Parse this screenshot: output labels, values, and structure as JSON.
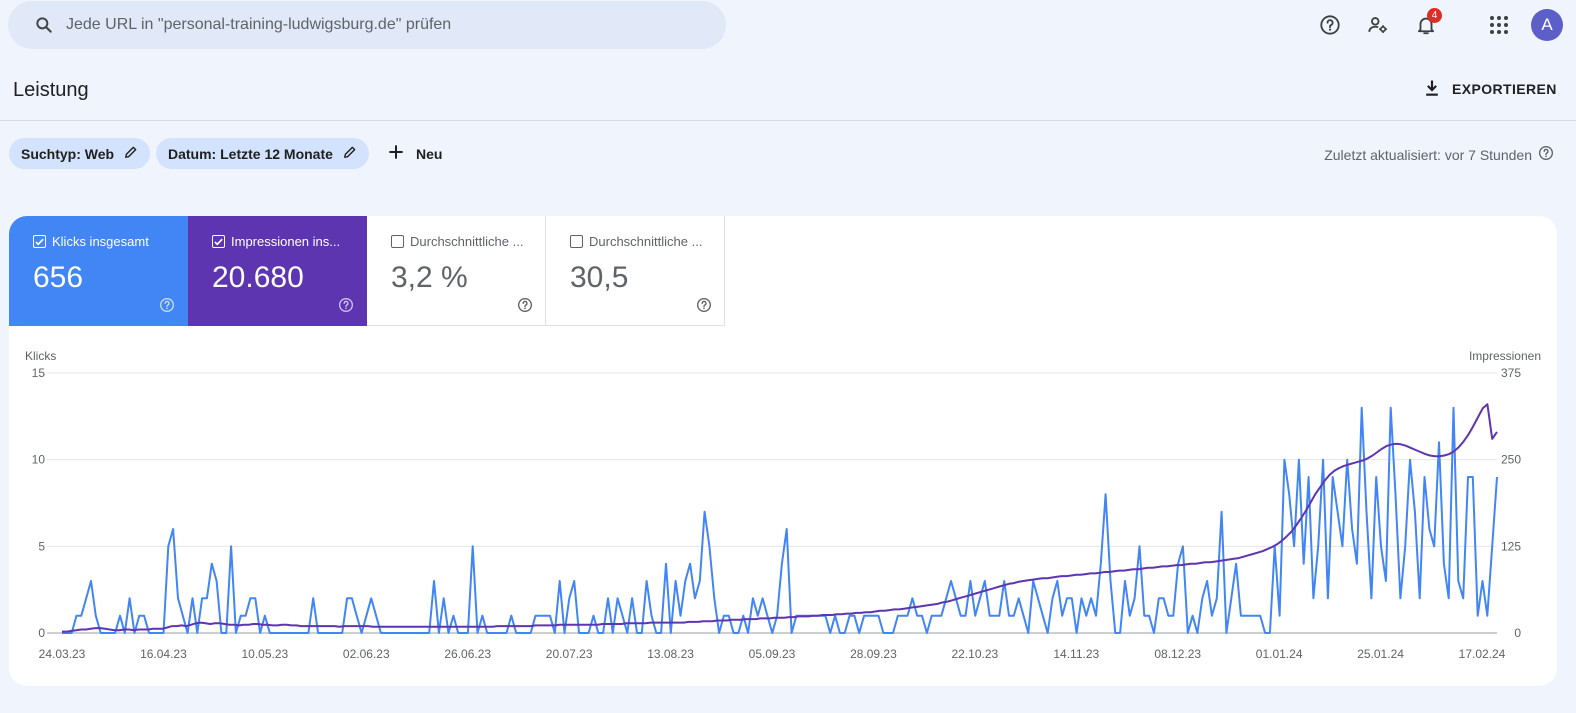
{
  "search": {
    "placeholder": "Jede URL in \"personal-training-ludwigsburg.de\" prüfen"
  },
  "notifications": {
    "count": "4"
  },
  "user": {
    "initial": "A"
  },
  "page": {
    "title": "Leistung",
    "export_label": "EXPORTIEREN"
  },
  "filters": {
    "chips": [
      {
        "label": "Suchtyp: Web"
      },
      {
        "label": "Datum: Letzte 12 Monate"
      }
    ],
    "new_label": "Neu",
    "updated": "Zuletzt aktualisiert: vor 7 Stunden"
  },
  "metrics": [
    {
      "label": "Klicks insgesamt",
      "value": "656",
      "checked": true,
      "color": "#4285f4"
    },
    {
      "label": "Impressionen ins...",
      "value": "20.680",
      "checked": true,
      "color": "#5e35b1"
    },
    {
      "label": "Durchschnittliche ...",
      "value": "3,2 %",
      "checked": false
    },
    {
      "label": "Durchschnittliche ...",
      "value": "30,5",
      "checked": false
    }
  ],
  "colors": {
    "clicks": "#4285f4",
    "impressions": "#5e35b1",
    "accent": "#1a73e8",
    "badge": "#d93025"
  },
  "chart_data": {
    "type": "line",
    "left_axis_label": "Klicks",
    "right_axis_label": "Impressionen",
    "left_ylim": [
      0,
      15
    ],
    "right_ylim": [
      0,
      375
    ],
    "left_ticks": [
      "0",
      "5",
      "10",
      "15"
    ],
    "right_ticks": [
      "0",
      "125",
      "250",
      "375"
    ],
    "x_ticks": [
      "24.03.23",
      "16.04.23",
      "10.05.23",
      "02.06.23",
      "26.06.23",
      "20.07.23",
      "13.08.23",
      "05.09.23",
      "28.09.23",
      "22.10.23",
      "14.11.23",
      "08.12.23",
      "01.01.24",
      "25.01.24",
      "17.02.24"
    ],
    "grid": true,
    "series": [
      {
        "name": "Klicks",
        "axis": "left",
        "values": [
          0,
          0,
          0,
          1,
          1,
          2,
          3,
          1,
          0,
          0,
          0,
          0,
          1,
          0,
          2,
          0,
          1,
          1,
          0,
          0,
          0,
          0,
          5,
          6,
          2,
          1,
          0,
          2,
          0,
          2,
          2,
          4,
          3,
          0,
          0,
          5,
          0,
          1,
          1,
          2,
          2,
          0,
          1,
          0,
          0,
          0,
          0,
          0,
          0,
          0,
          0,
          0,
          2,
          0,
          0,
          0,
          0,
          0,
          0,
          2,
          2,
          1,
          0,
          1,
          2,
          1,
          0,
          0,
          0,
          0,
          0,
          0,
          0,
          0,
          0,
          0,
          0,
          3,
          0,
          2,
          0,
          1,
          0,
          0,
          0,
          5,
          0,
          1,
          0,
          0,
          0,
          0,
          0,
          1,
          0,
          0,
          0,
          0,
          1,
          1,
          1,
          1,
          0,
          3,
          0,
          2,
          3,
          0,
          0,
          0,
          1,
          0,
          0,
          2,
          0,
          2,
          1,
          0,
          2,
          0,
          0,
          3,
          1,
          0,
          0,
          4,
          0,
          3,
          1,
          3,
          4,
          2,
          3,
          7,
          5,
          2,
          0,
          1,
          1,
          0,
          0,
          1,
          0,
          2,
          1,
          2,
          1,
          0,
          1,
          4,
          6,
          0,
          1,
          1,
          1,
          1,
          1,
          1,
          1,
          0,
          1,
          0,
          0,
          1,
          1,
          0,
          1,
          1,
          1,
          1,
          0,
          0,
          0,
          1,
          1,
          1,
          2,
          1,
          1,
          0,
          1,
          1,
          1,
          2,
          3,
          2,
          1,
          1,
          3,
          1,
          2,
          3,
          1,
          1,
          1,
          3,
          1,
          1,
          2,
          1,
          0,
          3,
          2,
          1,
          0,
          2,
          3,
          1,
          2,
          2,
          0,
          2,
          1,
          2,
          1,
          4,
          8,
          3,
          0,
          0,
          3,
          1,
          2,
          5,
          1,
          1,
          0,
          2,
          2,
          1,
          1,
          4,
          5,
          0,
          1,
          0,
          2,
          3,
          1,
          2,
          7,
          0,
          2,
          4,
          1,
          1,
          1,
          1,
          1,
          0,
          0,
          5,
          1,
          10,
          8,
          5,
          10,
          4,
          9,
          2,
          5,
          10,
          2,
          9,
          7,
          5,
          10,
          6,
          4,
          13,
          7,
          2,
          9,
          5,
          3,
          13,
          8,
          2,
          5,
          10,
          7,
          2,
          9,
          6,
          5,
          11,
          4,
          2,
          13,
          3,
          2,
          9,
          9,
          1,
          3,
          1,
          5,
          9
        ]
      },
      {
        "name": "Impressionen",
        "axis": "right",
        "values": [
          2,
          2,
          3,
          4,
          5,
          5,
          6,
          7,
          7,
          6,
          5,
          4,
          4,
          5,
          5,
          4,
          5,
          5,
          5,
          6,
          6,
          6,
          8,
          10,
          10,
          11,
          10,
          12,
          14,
          15,
          14,
          13,
          14,
          14,
          13,
          12,
          12,
          11,
          12,
          12,
          13,
          13,
          12,
          12,
          11,
          11,
          12,
          12,
          11,
          11,
          10,
          10,
          10,
          10,
          10,
          10,
          10,
          10,
          9,
          10,
          10,
          10,
          10,
          10,
          10,
          9,
          9,
          9,
          9,
          9,
          9,
          9,
          9,
          9,
          9,
          9,
          9,
          9,
          9,
          9,
          9,
          9,
          9,
          9,
          9,
          9,
          9,
          9,
          9,
          9,
          9,
          10,
          10,
          10,
          10,
          10,
          10,
          10,
          10,
          11,
          11,
          11,
          11,
          11,
          12,
          12,
          12,
          12,
          12,
          12,
          12,
          12,
          12,
          13,
          13,
          13,
          13,
          13,
          14,
          14,
          14,
          14,
          14,
          15,
          15,
          15,
          15,
          15,
          15,
          15,
          15,
          16,
          16,
          16,
          17,
          17,
          17,
          18,
          18,
          18,
          19,
          19,
          19,
          20,
          20,
          20,
          21,
          21,
          21,
          22,
          22,
          22,
          23,
          23,
          24,
          24,
          24,
          25,
          25,
          26,
          26,
          26,
          27,
          27,
          28,
          28,
          29,
          29,
          30,
          30,
          31,
          32,
          32,
          33,
          34,
          34,
          35,
          36,
          37,
          38,
          39,
          40,
          41,
          42,
          44,
          45,
          47,
          49,
          51,
          53,
          55,
          57,
          59,
          61,
          63,
          65,
          67,
          69,
          71,
          72,
          74,
          75,
          76,
          77,
          78,
          79,
          79,
          80,
          81,
          82,
          82,
          83,
          84,
          84,
          85,
          86,
          86,
          87,
          88,
          88,
          89,
          90,
          90,
          91,
          92,
          92,
          93,
          94,
          94,
          95,
          96,
          96,
          97,
          98,
          98,
          99,
          100,
          100,
          101,
          102,
          102,
          103,
          104,
          105,
          106,
          107,
          108,
          110,
          112,
          114,
          116,
          118,
          121,
          124,
          128,
          133,
          139,
          146,
          155,
          165,
          176,
          188,
          200,
          210,
          220,
          228,
          234,
          238,
          241,
          243,
          245,
          247,
          249,
          252,
          256,
          261,
          266,
          270,
          272,
          273,
          272,
          270,
          267,
          264,
          261,
          258,
          256,
          255,
          255,
          256,
          258,
          262,
          268,
          276,
          286,
          298,
          311,
          324,
          330,
          280,
          290
        ]
      }
    ]
  }
}
